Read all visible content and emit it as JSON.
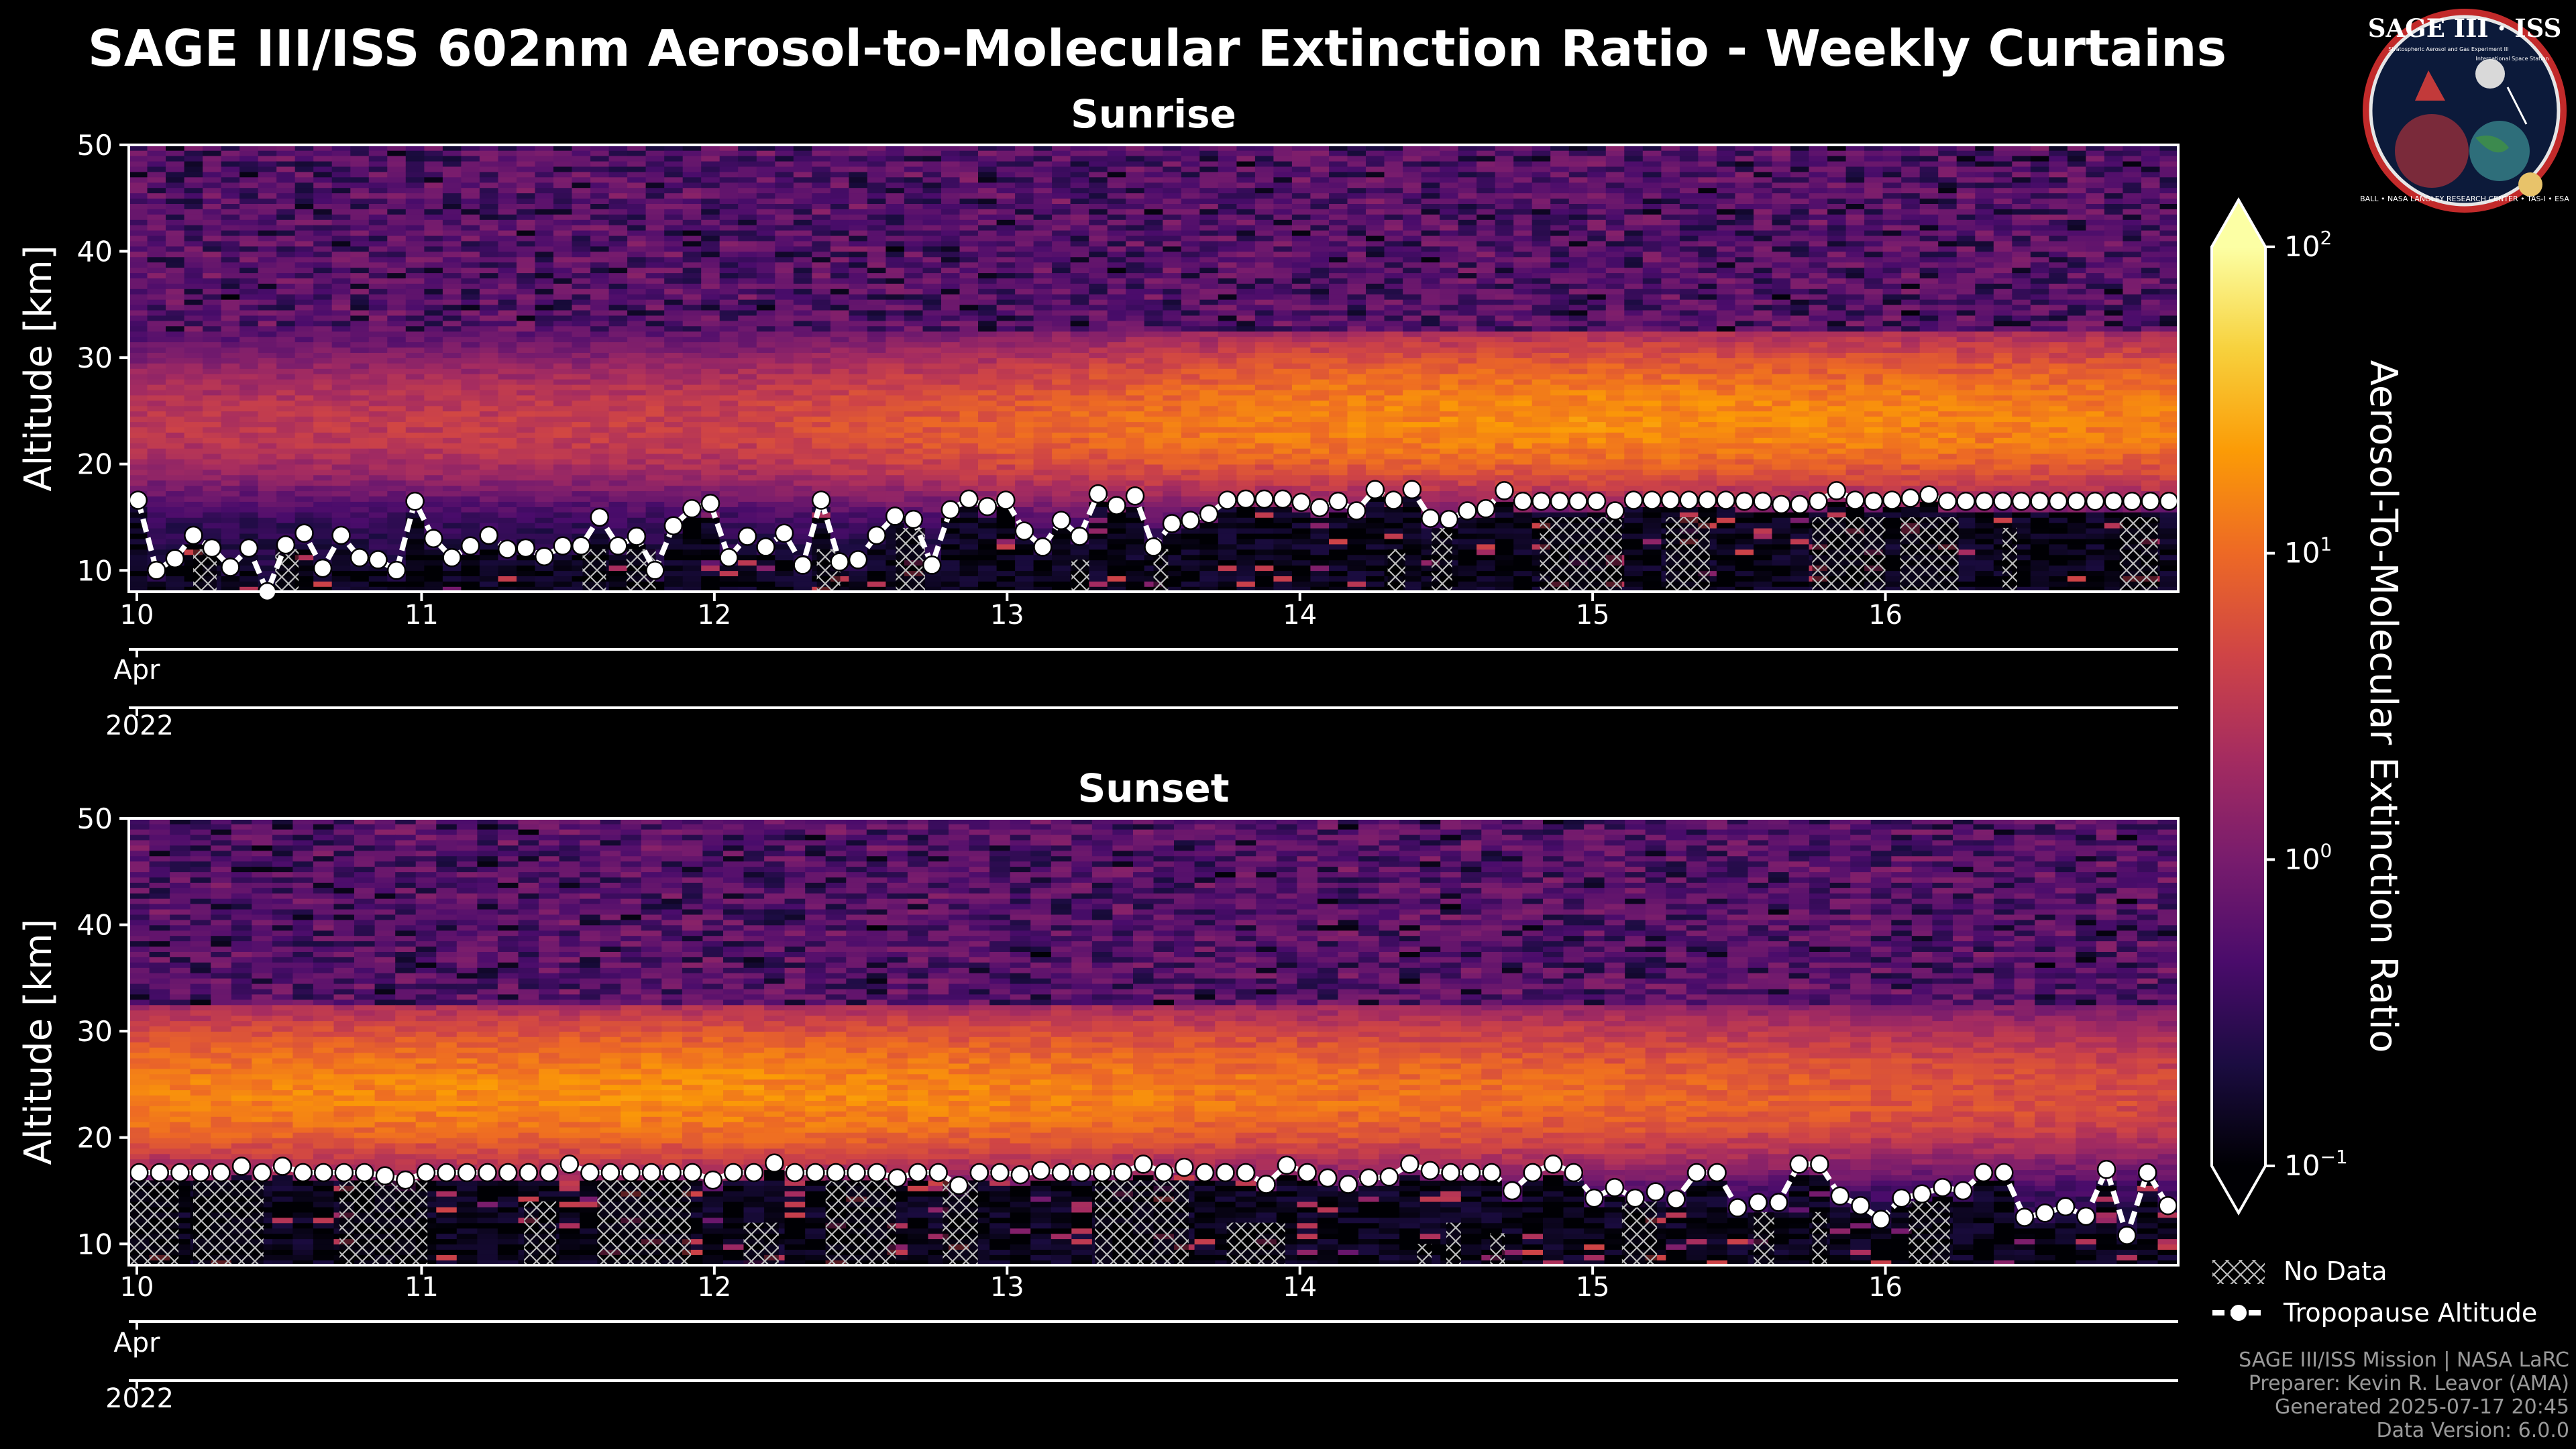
{
  "figure": {
    "title": "SAGE III/ISS 602nm Aerosol-to-Molecular Extinction Ratio - Weekly Curtains",
    "logo": {
      "name": "SAGE III · ISS",
      "subtitle": "Stratospheric Aerosol and Gas Experiment III",
      "station": "International Space Station",
      "ring_text": "BALL • NASA LANGLEY RESEARCH CENTER • TAS-I • ESA"
    },
    "credits": [
      "SAGE III/ISS Mission | NASA LaRC",
      "Preparer: Kevin R. Leavor (AMA)",
      "Generated 2025-07-17 20:45",
      "Data Version: 6.0.0"
    ],
    "legend": {
      "no_data": "No Data",
      "tropopause": "Tropopause Altitude"
    },
    "colorbar": {
      "label": "Aerosol-To-Molecular Extinction Ratio",
      "scale": "log",
      "range": [
        0.1,
        100
      ],
      "ticks": [
        {
          "value": 100,
          "base": "10",
          "exp": "2"
        },
        {
          "value": 10,
          "base": "10",
          "exp": "1"
        },
        {
          "value": 1,
          "base": "10",
          "exp": "0"
        },
        {
          "value": 0.1,
          "base": "10",
          "exp": "−1"
        }
      ],
      "colors": [
        "#000004",
        "#1b0c41",
        "#4a0c6b",
        "#781c6d",
        "#a52c60",
        "#cf4446",
        "#ed6925",
        "#fb9b06",
        "#f7d13d",
        "#fcffa4"
      ]
    }
  },
  "chart_data": [
    {
      "type": "heatmap",
      "title": "Sunrise",
      "ylabel": "Altitude [km]",
      "ylim": [
        8,
        50
      ],
      "yticks": [
        10,
        20,
        30,
        40,
        50
      ],
      "xlim": [
        10,
        17
      ],
      "xticks": [
        {
          "value": 10,
          "label": "10"
        },
        {
          "value": 11,
          "label": "11"
        },
        {
          "value": 12,
          "label": "12"
        },
        {
          "value": 13,
          "label": "13"
        },
        {
          "value": 14,
          "label": "14"
        },
        {
          "value": 15,
          "label": "15"
        },
        {
          "value": 16,
          "label": "16"
        }
      ],
      "month_label": "Apr",
      "year_label": "2022",
      "aerosol_layer": {
        "peak_altitude_km": [
          23.5,
          23.5,
          23.5,
          23.5,
          24.0,
          24.0,
          24.0,
          24.0
        ],
        "peak_ratio": [
          3,
          3.5,
          4,
          8,
          15,
          18,
          16,
          14
        ],
        "at_day": [
          10,
          11,
          12,
          13,
          14,
          15,
          16,
          17
        ]
      },
      "tropopause_km": [
        16.6,
        10.0,
        11.1,
        13.3,
        12.1,
        10.3,
        12.1,
        8.0,
        12.4,
        13.5,
        10.2,
        13.3,
        11.2,
        11.0,
        10.0,
        16.5,
        13.0,
        11.2,
        12.3,
        13.3,
        12.0,
        12.1,
        11.3,
        12.3,
        12.3,
        15.0,
        12.3,
        13.2,
        10.0,
        14.2,
        15.8,
        16.3,
        11.2,
        13.2,
        12.2,
        13.5,
        10.5,
        16.6,
        10.8,
        11.0,
        13.3,
        15.1,
        14.8,
        10.5,
        15.7,
        16.7,
        16.0,
        16.6,
        13.7,
        12.2,
        14.7,
        13.2,
        17.2,
        16.1,
        17.0,
        12.2,
        14.4,
        14.7,
        15.3,
        16.6,
        16.7,
        16.7,
        16.7,
        16.4,
        15.9,
        16.5,
        15.6,
        17.6,
        16.6,
        17.6,
        14.9,
        14.8,
        15.6,
        15.8,
        17.5,
        16.5,
        16.5,
        16.5,
        16.5,
        16.5,
        15.6,
        16.6,
        16.6,
        16.6,
        16.6,
        16.6,
        16.6,
        16.5,
        16.5,
        16.2,
        16.2,
        16.5,
        17.5,
        16.6,
        16.5,
        16.6,
        16.8,
        17.1,
        16.5,
        16.5,
        16.5,
        16.5,
        16.5,
        16.5,
        16.5,
        16.5,
        16.5,
        16.5,
        16.5,
        16.5,
        16.5
      ],
      "no_data_boxes": [
        {
          "x0": 10.22,
          "x1": 10.3,
          "top_km": 12
        },
        {
          "x0": 10.5,
          "x1": 10.58,
          "top_km": 12
        },
        {
          "x0": 11.55,
          "x1": 11.63,
          "top_km": 12
        },
        {
          "x0": 11.7,
          "x1": 11.8,
          "top_km": 12
        },
        {
          "x0": 12.35,
          "x1": 12.43,
          "top_km": 12
        },
        {
          "x0": 12.62,
          "x1": 12.72,
          "top_km": 14
        },
        {
          "x0": 13.22,
          "x1": 13.28,
          "top_km": 11
        },
        {
          "x0": 13.5,
          "x1": 13.55,
          "top_km": 12
        },
        {
          "x0": 14.3,
          "x1": 14.36,
          "top_km": 12
        },
        {
          "x0": 14.45,
          "x1": 14.52,
          "top_km": 14
        },
        {
          "x0": 14.82,
          "x1": 15.1,
          "top_km": 15
        },
        {
          "x0": 15.25,
          "x1": 15.4,
          "top_km": 15
        },
        {
          "x0": 15.75,
          "x1": 16.0,
          "top_km": 15
        },
        {
          "x0": 16.05,
          "x1": 16.25,
          "top_km": 15
        },
        {
          "x0": 16.4,
          "x1": 16.45,
          "top_km": 14
        },
        {
          "x0": 16.8,
          "x1": 16.93,
          "top_km": 15
        }
      ]
    },
    {
      "type": "heatmap",
      "title": "Sunset",
      "ylabel": "Altitude [km]",
      "ylim": [
        8,
        50
      ],
      "yticks": [
        10,
        20,
        30,
        40,
        50
      ],
      "xlim": [
        10,
        17
      ],
      "xticks": [
        {
          "value": 10,
          "label": "10"
        },
        {
          "value": 11,
          "label": "11"
        },
        {
          "value": 12,
          "label": "12"
        },
        {
          "value": 13,
          "label": "13"
        },
        {
          "value": 14,
          "label": "14"
        },
        {
          "value": 15,
          "label": "15"
        },
        {
          "value": 16,
          "label": "16"
        }
      ],
      "month_label": "Apr",
      "year_label": "2022",
      "aerosol_layer": {
        "peak_altitude_km": [
          24.0,
          24.0,
          24.0,
          24.0,
          24.0,
          24.0,
          24.0,
          24.0
        ],
        "peak_ratio": [
          14,
          16,
          18,
          15,
          12,
          10,
          7,
          5
        ],
        "at_day": [
          10,
          11,
          12,
          13,
          14,
          15,
          16,
          17
        ]
      },
      "tropopause_km": [
        16.7,
        16.7,
        16.7,
        16.7,
        16.7,
        17.3,
        16.7,
        17.3,
        16.7,
        16.7,
        16.7,
        16.7,
        16.4,
        16.0,
        16.7,
        16.7,
        16.7,
        16.7,
        16.7,
        16.7,
        16.7,
        17.5,
        16.7,
        16.7,
        16.7,
        16.7,
        16.7,
        16.7,
        16.0,
        16.7,
        16.7,
        17.6,
        16.7,
        16.7,
        16.7,
        16.7,
        16.7,
        16.2,
        16.7,
        16.7,
        15.5,
        16.7,
        16.7,
        16.5,
        16.9,
        16.7,
        16.7,
        16.7,
        16.7,
        17.5,
        16.7,
        17.2,
        16.7,
        16.7,
        16.7,
        15.6,
        17.4,
        16.7,
        16.2,
        15.6,
        16.2,
        16.3,
        17.5,
        16.9,
        16.7,
        16.7,
        16.7,
        15.0,
        16.7,
        17.5,
        16.7,
        14.3,
        15.3,
        14.3,
        14.9,
        14.2,
        16.7,
        16.7,
        13.4,
        13.9,
        13.9,
        17.5,
        17.5,
        14.5,
        13.6,
        12.3,
        14.3,
        14.7,
        15.3,
        15.0,
        16.7,
        16.7,
        12.5,
        12.9,
        13.5,
        12.6,
        17.0,
        10.8,
        16.7,
        13.6
      ],
      "no_data_boxes": [
        {
          "x0": 10.0,
          "x1": 10.17,
          "top_km": 16
        },
        {
          "x0": 10.22,
          "x1": 10.46,
          "top_km": 16
        },
        {
          "x0": 10.72,
          "x1": 11.02,
          "top_km": 16
        },
        {
          "x0": 11.35,
          "x1": 11.46,
          "top_km": 14
        },
        {
          "x0": 11.6,
          "x1": 11.92,
          "top_km": 16
        },
        {
          "x0": 12.1,
          "x1": 12.22,
          "top_km": 12
        },
        {
          "x0": 12.38,
          "x1": 12.62,
          "top_km": 16
        },
        {
          "x0": 12.78,
          "x1": 12.9,
          "top_km": 16
        },
        {
          "x0": 13.3,
          "x1": 13.62,
          "top_km": 16
        },
        {
          "x0": 13.75,
          "x1": 13.95,
          "top_km": 12
        },
        {
          "x0": 14.4,
          "x1": 14.45,
          "top_km": 10
        },
        {
          "x0": 14.5,
          "x1": 14.55,
          "top_km": 12
        },
        {
          "x0": 14.65,
          "x1": 14.7,
          "top_km": 11
        },
        {
          "x0": 15.1,
          "x1": 15.22,
          "top_km": 14
        },
        {
          "x0": 15.55,
          "x1": 15.62,
          "top_km": 13
        },
        {
          "x0": 15.75,
          "x1": 15.8,
          "top_km": 13
        },
        {
          "x0": 16.08,
          "x1": 16.22,
          "top_km": 14
        }
      ]
    }
  ]
}
